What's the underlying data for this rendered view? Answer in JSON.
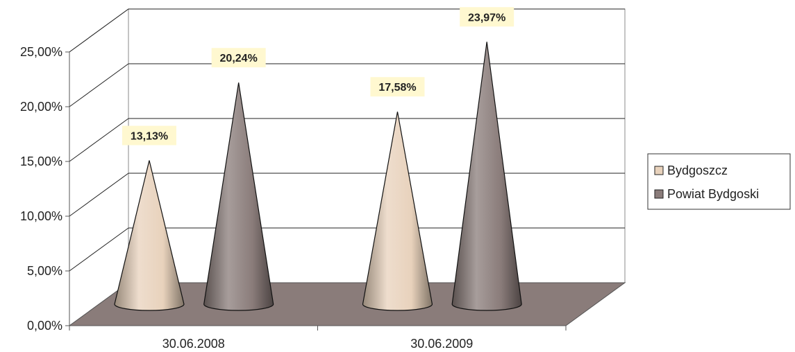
{
  "chart_data": {
    "type": "bar",
    "style": "3d-cone",
    "title": "",
    "xlabel": "",
    "ylabel": "",
    "ylim": [
      0,
      25
    ],
    "y_ticks": [
      "0,00%",
      "5,00%",
      "10,00%",
      "15,00%",
      "20,00%",
      "25,00%"
    ],
    "categories": [
      "30.06.2008",
      "30.06.2009"
    ],
    "series": [
      {
        "name": "Bydgoszcz",
        "values": [
          13.13,
          17.58
        ],
        "labels": [
          "13,13%",
          "17,58%"
        ],
        "color": "#e8d2bc"
      },
      {
        "name": "Powiat Bydgoski",
        "values": [
          20.24,
          23.97
        ],
        "labels": [
          "20,24%",
          "23,97%"
        ],
        "color": "#8a7c7a"
      }
    ],
    "grid": true,
    "legend": "right",
    "floor_color": "#8a7c7a",
    "label_background": "#fff8d0"
  }
}
